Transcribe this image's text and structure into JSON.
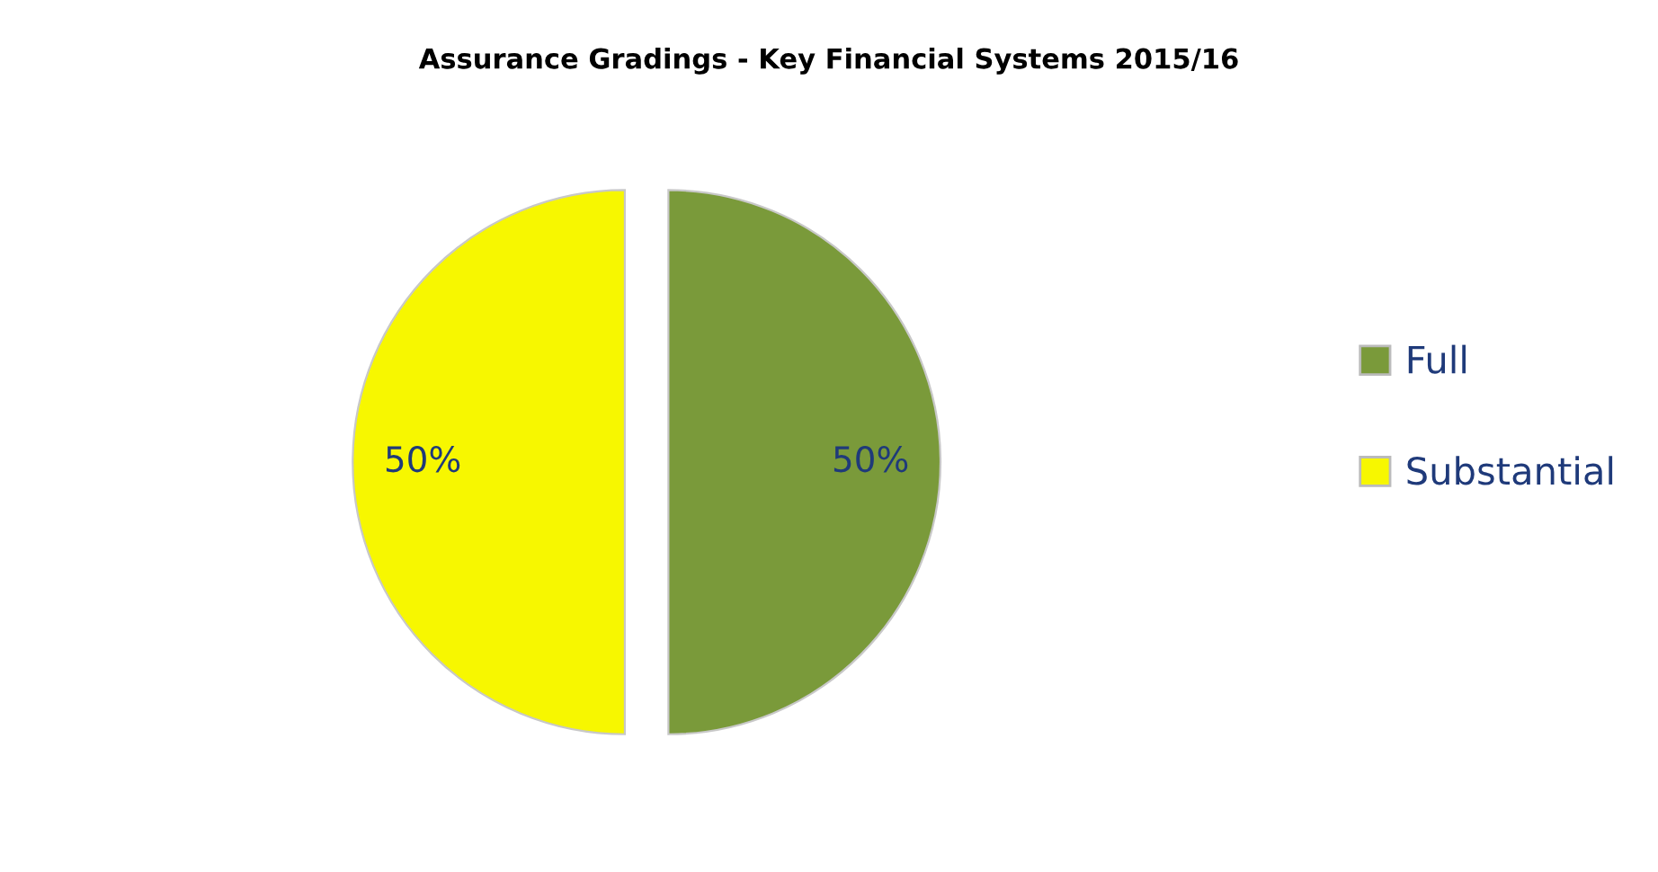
{
  "chart_data": {
    "type": "pie",
    "title": "Assurance Gradings - Key Financial Systems 2015/16",
    "categories": [
      "Full",
      "Substantial"
    ],
    "values": [
      50,
      50
    ],
    "colors": [
      "#7a9a3a",
      "#f7f700"
    ],
    "value_labels": [
      "50%",
      "50%"
    ],
    "legend": "right"
  }
}
